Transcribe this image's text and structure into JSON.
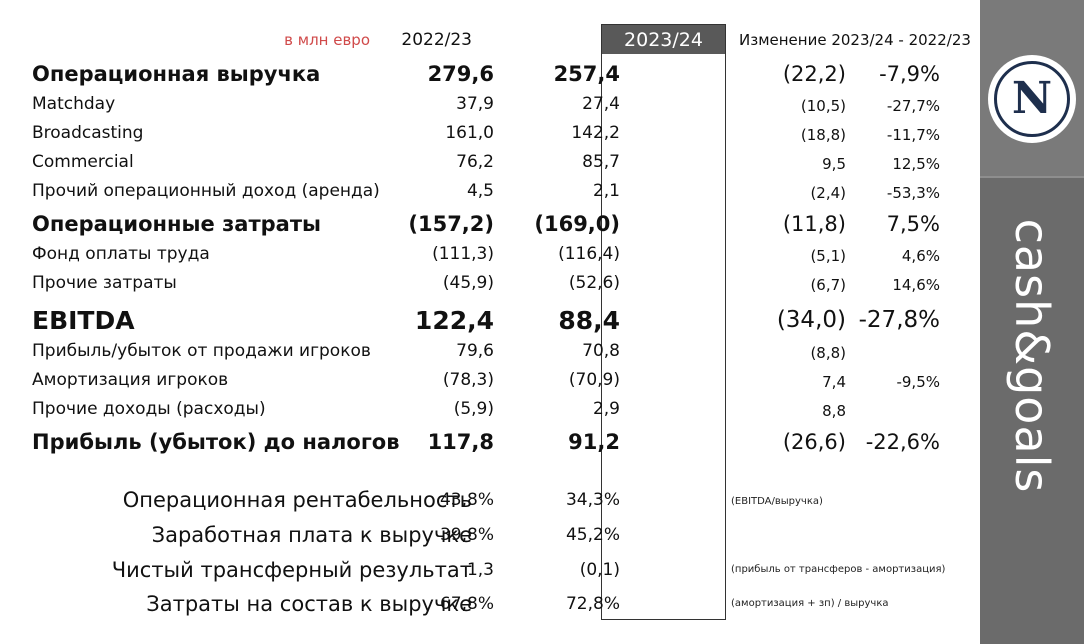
{
  "header": {
    "unit": "в млн евро",
    "year_prev": "2022/23",
    "year_curr": "2023/24",
    "change": "Изменение 2023/24 - 2022/23"
  },
  "rows": [
    {
      "label": "Операционная выручка",
      "prev": "279,6",
      "curr": "257,4",
      "dabs": "(22,2)",
      "dpct": "-7,9%"
    },
    {
      "label": "Matchday",
      "prev": "37,9",
      "curr": "27,4",
      "dabs": "(10,5)",
      "dpct": "-27,7%"
    },
    {
      "label": "Broadcasting",
      "prev": "161,0",
      "curr": "142,2",
      "dabs": "(18,8)",
      "dpct": "-11,7%"
    },
    {
      "label": "Commercial",
      "prev": "76,2",
      "curr": "85,7",
      "dabs": "9,5",
      "dpct": "12,5%"
    },
    {
      "label": "Прочий операционный доход (аренда)",
      "prev": "4,5",
      "curr": "2,1",
      "dabs": "(2,4)",
      "dpct": "-53,3%"
    },
    {
      "label": "Операционные затраты",
      "prev": "(157,2)",
      "curr": "(169,0)",
      "dabs": "(11,8)",
      "dpct": "7,5%"
    },
    {
      "label": "Фонд оплаты труда",
      "prev": "(111,3)",
      "curr": "(116,4)",
      "dabs": "(5,1)",
      "dpct": "4,6%"
    },
    {
      "label": "Прочие затраты",
      "prev": "(45,9)",
      "curr": "(52,6)",
      "dabs": "(6,7)",
      "dpct": "14,6%"
    },
    {
      "label": "EBITDA",
      "prev": "122,4",
      "curr": "88,4",
      "dabs": "(34,0)",
      "dpct": "-27,8%"
    },
    {
      "label": "Прибыль/убыток от продажи игроков",
      "prev": "79,6",
      "curr": "70,8",
      "dabs": "(8,8)",
      "dpct": ""
    },
    {
      "label": "Амортизация игроков",
      "prev": "(78,3)",
      "curr": "(70,9)",
      "dabs": "7,4",
      "dpct": "-9,5%"
    },
    {
      "label": "Прочие доходы (расходы)",
      "prev": "(5,9)",
      "curr": "2,9",
      "dabs": "8,8",
      "dpct": ""
    },
    {
      "label": "Прибыль (убыток) до налогов",
      "prev": "117,8",
      "curr": "91,2",
      "dabs": "(26,6)",
      "dpct": "-22,6%"
    }
  ],
  "ratios": [
    {
      "label": "Операционная рентабельность",
      "prev": "43,8%",
      "curr": "34,3%",
      "note": "(EBITDA/выручка)"
    },
    {
      "label": "Заработная плата к выручке",
      "prev": "39,8%",
      "curr": "45,2%",
      "note": ""
    },
    {
      "label": "Чистый трансферный результат",
      "prev": "1,3",
      "curr": "(0,1)",
      "note": "(прибыль от трансферов - амортизация)"
    },
    {
      "label": "Затраты на состав к выручке",
      "prev": "67,8%",
      "curr": "72,8%",
      "note": "(амортизация + зп) / выручка"
    }
  ],
  "sidebar": {
    "logo_letter": "N",
    "logo_icon": "club-crest-icon",
    "brand": "cash&goals"
  },
  "colors": {
    "unit_text": "#d04a4a",
    "highlight_header": "#595959",
    "sidebar": "#6b6b6b",
    "crest": "#1e2f4d"
  }
}
